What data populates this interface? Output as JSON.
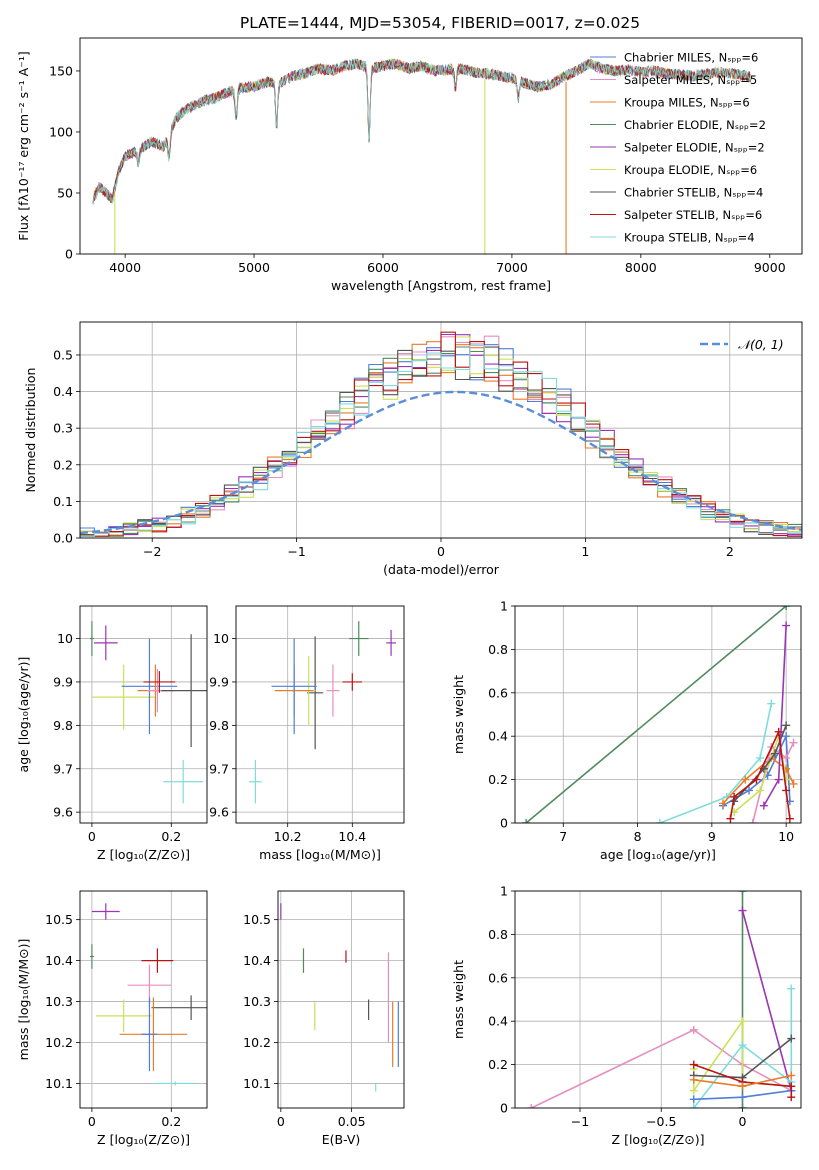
{
  "figure_title": "PLATE=1444, MJD=53054, FIBERID=0017, z=0.025",
  "colors": {
    "Chabrier MILES": "#4f7fd6",
    "Salpeter MILES": "#e58fbf",
    "Kroupa MILES": "#e87c2a",
    "Chabrier ELODIE": "#4f8a5f",
    "Salpeter ELODIE": "#9b35b5",
    "Kroupa ELODIE": "#cce05a",
    "Chabrier STELIB": "#555555",
    "Salpeter STELIB": "#b81414",
    "Kroupa STELIB": "#80dcdc"
  },
  "chart_data": [
    {
      "id": "spectrum",
      "type": "line",
      "xlabel": "wavelength [Angstrom, rest frame]",
      "ylabel": "Flux [fλ10⁻¹⁷ erg cm⁻² s⁻¹ A⁻¹]",
      "xlim": [
        3650,
        9250
      ],
      "ylim": [
        0,
        177
      ],
      "xticks": [
        4000,
        5000,
        6000,
        7000,
        8000,
        9000
      ],
      "yticks": [
        0,
        50,
        100,
        150
      ],
      "grid": false,
      "legend_position": "right",
      "legend": [
        "Chabrier MILES, Nₛₚₚ=6",
        "Salpeter MILES, Nₛₚₚ=5",
        "Kroupa MILES, Nₛₚₚ=6",
        "Chabrier ELODIE, Nₛₚₚ=2",
        "Salpeter ELODIE, Nₛₚₚ=2",
        "Kroupa ELODIE, Nₛₚₚ=6",
        "Chabrier STELIB, Nₛₚₚ=4",
        "Salpeter STELIB, Nₛₚₚ=6",
        "Kroupa STELIB, Nₛₚₚ=4"
      ],
      "continuum": [
        [
          3750,
          45
        ],
        [
          3800,
          55
        ],
        [
          3850,
          50
        ],
        [
          3900,
          45
        ],
        [
          3950,
          68
        ],
        [
          4000,
          80
        ],
        [
          4100,
          85
        ],
        [
          4200,
          92
        ],
        [
          4300,
          88
        ],
        [
          4400,
          112
        ],
        [
          4500,
          120
        ],
        [
          4600,
          125
        ],
        [
          4700,
          128
        ],
        [
          4800,
          133
        ],
        [
          4900,
          136
        ],
        [
          5000,
          137
        ],
        [
          5100,
          141
        ],
        [
          5200,
          140
        ],
        [
          5300,
          146
        ],
        [
          5400,
          148
        ],
        [
          5500,
          152
        ],
        [
          5600,
          150
        ],
        [
          5700,
          154
        ],
        [
          5800,
          156
        ],
        [
          5900,
          152
        ],
        [
          6000,
          154
        ],
        [
          6100,
          156
        ],
        [
          6200,
          152
        ],
        [
          6300,
          154
        ],
        [
          6400,
          150
        ],
        [
          6500,
          151
        ],
        [
          6600,
          152
        ],
        [
          6700,
          149
        ],
        [
          6800,
          148
        ],
        [
          6900,
          146
        ],
        [
          7000,
          144
        ],
        [
          7100,
          140
        ],
        [
          7200,
          137
        ],
        [
          7300,
          139
        ],
        [
          7400,
          145
        ],
        [
          7500,
          150
        ],
        [
          7600,
          156
        ],
        [
          7700,
          152
        ],
        [
          7800,
          150
        ],
        [
          7900,
          151
        ],
        [
          8000,
          149
        ],
        [
          8100,
          150
        ],
        [
          8200,
          148
        ],
        [
          8300,
          147
        ],
        [
          8400,
          146
        ],
        [
          8500,
          147
        ],
        [
          8600,
          149
        ],
        [
          8700,
          148
        ],
        [
          8800,
          146
        ],
        [
          8850,
          145
        ]
      ],
      "absorption_dips": [
        [
          3934,
          60
        ],
        [
          4102,
          75
        ],
        [
          4340,
          80
        ],
        [
          4861,
          112
        ],
        [
          5175,
          105
        ],
        [
          5892,
          95
        ],
        [
          6563,
          135
        ],
        [
          7050,
          128
        ]
      ],
      "drop_lines": [
        [
          3920,
          0
        ],
        [
          6790,
          0
        ],
        [
          7420,
          0
        ]
      ]
    },
    {
      "id": "residuals",
      "type": "bar",
      "xlabel": "(data-model)/error",
      "ylabel": "Normed distribution",
      "xlim": [
        -2.5,
        2.5
      ],
      "ylim": [
        0,
        0.59
      ],
      "xticks": [
        -2,
        -1,
        0,
        1,
        2
      ],
      "yticks": [
        0.0,
        0.1,
        0.2,
        0.3,
        0.4,
        0.5
      ],
      "grid": true,
      "legend_position": "top-right",
      "legend": [
        "𝒩(0, 1)"
      ],
      "bin_width": 0.1,
      "normal": {
        "mean": 0.1,
        "sigma": 1.0
      }
    },
    {
      "id": "age-vs-z",
      "type": "scatter",
      "xlabel": "Z [log₁₀(Z/Z⊙)]",
      "ylabel": "age  [log₁₀(age/yr)]",
      "xlim": [
        -0.03,
        0.29
      ],
      "ylim": [
        9.575,
        10.075
      ],
      "xticks": [
        0.0,
        0.2
      ],
      "yticks": [
        9.6,
        9.7,
        9.8,
        9.9,
        10.0
      ],
      "grid": true,
      "points": [
        {
          "model": "Chabrier ELODIE",
          "x": 0.0,
          "y": 10.0,
          "xerr": 0.005,
          "yerr": 0.04
        },
        {
          "model": "Salpeter ELODIE",
          "x": 0.035,
          "y": 9.99,
          "xerr": 0.03,
          "yerr": 0.04
        },
        {
          "model": "Kroupa ELODIE",
          "x": 0.08,
          "y": 9.865,
          "xerr": 0.08,
          "yerr": 0.075
        },
        {
          "model": "Chabrier MILES",
          "x": 0.145,
          "y": 9.89,
          "xerr": 0.07,
          "yerr": 0.11
        },
        {
          "model": "Kroupa MILES",
          "x": 0.16,
          "y": 9.88,
          "xerr": 0.045,
          "yerr": 0.06
        },
        {
          "model": "Salpeter MILES",
          "x": 0.165,
          "y": 9.88,
          "xerr": 0.025,
          "yerr": 0.05
        },
        {
          "model": "Salpeter STELIB",
          "x": 0.17,
          "y": 9.9,
          "xerr": 0.04,
          "yerr": 0.025
        },
        {
          "model": "Chabrier STELIB",
          "x": 0.25,
          "y": 9.88,
          "xerr": 0.075,
          "yerr": 0.13
        },
        {
          "model": "Kroupa STELIB",
          "x": 0.23,
          "y": 9.67,
          "xerr": 0.05,
          "yerr": 0.05
        }
      ]
    },
    {
      "id": "age-vs-mass",
      "type": "scatter",
      "xlabel": "mass [log₁₀(M/M⊙)]",
      "ylabel": "",
      "xlim": [
        10.04,
        10.56
      ],
      "ylim": [
        9.575,
        10.075
      ],
      "xticks": [
        10.2,
        10.4
      ],
      "yticks": [
        9.6,
        9.7,
        9.8,
        9.9,
        10.0
      ],
      "grid": true,
      "points": [
        {
          "model": "Salpeter ELODIE",
          "x": 10.52,
          "y": 9.99,
          "xerr": 0.015,
          "yerr": 0.03
        },
        {
          "model": "Chabrier ELODIE",
          "x": 10.42,
          "y": 10.0,
          "xerr": 0.03,
          "yerr": 0.04
        },
        {
          "model": "Salpeter STELIB",
          "x": 10.4,
          "y": 9.9,
          "xerr": 0.03,
          "yerr": 0.02
        },
        {
          "model": "Salpeter MILES",
          "x": 10.34,
          "y": 9.88,
          "xerr": 0.02,
          "yerr": 0.06
        },
        {
          "model": "Chabrier STELIB",
          "x": 10.285,
          "y": 9.875,
          "xerr": 0.025,
          "yerr": 0.13
        },
        {
          "model": "Kroupa ELODIE",
          "x": 10.265,
          "y": 9.88,
          "xerr": 0.02,
          "yerr": 0.08
        },
        {
          "model": "Kroupa MILES",
          "x": 10.22,
          "y": 9.88,
          "xerr": 0.06,
          "yerr": 0.06
        },
        {
          "model": "Chabrier MILES",
          "x": 10.22,
          "y": 9.89,
          "xerr": 0.07,
          "yerr": 0.11
        },
        {
          "model": "Kroupa STELIB",
          "x": 10.1,
          "y": 9.67,
          "xerr": 0.02,
          "yerr": 0.05
        }
      ]
    },
    {
      "id": "weight-vs-age",
      "type": "line",
      "xlabel": "age  [log₁₀(age/yr)]",
      "ylabel": "mass weight",
      "xlim": [
        6.35,
        10.2
      ],
      "ylim": [
        0,
        1
      ],
      "xticks": [
        7,
        8,
        9,
        10
      ],
      "yticks": [
        0.0,
        0.2,
        0.4,
        0.6,
        0.8,
        1.0
      ],
      "grid": true,
      "series": [
        {
          "model": "Chabrier ELODIE",
          "points": [
            [
              6.5,
              0.0
            ],
            [
              10.0,
              1.0
            ]
          ]
        },
        {
          "model": "Kroupa STELIB",
          "points": [
            [
              8.3,
              0.0
            ],
            [
              9.2,
              0.12
            ],
            [
              9.65,
              0.3
            ],
            [
              9.8,
              0.55
            ]
          ]
        },
        {
          "model": "Chabrier MILES",
          "points": [
            [
              9.15,
              0.08
            ],
            [
              9.5,
              0.15
            ],
            [
              9.75,
              0.22
            ],
            [
              10.0,
              0.4
            ],
            [
              10.05,
              0.1
            ]
          ]
        },
        {
          "model": "Kroupa MILES",
          "points": [
            [
              9.15,
              0.09
            ],
            [
              9.45,
              0.2
            ],
            [
              9.8,
              0.3
            ],
            [
              10.0,
              0.25
            ],
            [
              10.1,
              0.18
            ]
          ]
        },
        {
          "model": "Salpeter MILES",
          "points": [
            [
              9.55,
              0.0
            ],
            [
              9.8,
              0.35
            ],
            [
              10.0,
              0.3
            ],
            [
              10.1,
              0.37
            ]
          ]
        },
        {
          "model": "Kroupa ELODIE",
          "points": [
            [
              9.3,
              0.05
            ],
            [
              9.65,
              0.15
            ],
            [
              9.9,
              0.4
            ],
            [
              10.0,
              0.2
            ]
          ]
        },
        {
          "model": "Chabrier STELIB",
          "points": [
            [
              9.3,
              0.1
            ],
            [
              9.7,
              0.25
            ],
            [
              9.85,
              0.32
            ],
            [
              10.0,
              0.45
            ]
          ]
        },
        {
          "model": "Salpeter ELODIE",
          "points": [
            [
              9.7,
              0.08
            ],
            [
              9.9,
              0.2
            ],
            [
              10.0,
              0.91
            ]
          ]
        },
        {
          "model": "Salpeter STELIB",
          "points": [
            [
              9.25,
              0.02
            ],
            [
              9.3,
              0.12
            ],
            [
              9.6,
              0.2
            ],
            [
              9.9,
              0.42
            ],
            [
              10.0,
              0.15
            ],
            [
              10.05,
              0.02
            ]
          ]
        }
      ]
    },
    {
      "id": "mass-vs-z",
      "type": "scatter",
      "xlabel": "Z [log₁₀(Z/Z⊙)]",
      "ylabel": "mass [log₁₀(M/M⊙)]",
      "xlim": [
        -0.03,
        0.29
      ],
      "ylim": [
        10.04,
        10.57
      ],
      "xticks": [
        0.0,
        0.2
      ],
      "yticks": [
        10.1,
        10.2,
        10.3,
        10.4,
        10.5
      ],
      "grid": true,
      "points": [
        {
          "model": "Salpeter ELODIE",
          "x": 0.035,
          "y": 10.52,
          "xerr": 0.035,
          "yerr": 0.02
        },
        {
          "model": "Chabrier ELODIE",
          "x": 0.0,
          "y": 10.41,
          "xerr": 0.005,
          "yerr": 0.03
        },
        {
          "model": "Salpeter STELIB",
          "x": 0.165,
          "y": 10.4,
          "xerr": 0.04,
          "yerr": 0.03
        },
        {
          "model": "Salpeter MILES",
          "x": 0.145,
          "y": 10.34,
          "xerr": 0.055,
          "yerr": 0.05
        },
        {
          "model": "Chabrier STELIB",
          "x": 0.25,
          "y": 10.285,
          "xerr": 0.1,
          "yerr": 0.03
        },
        {
          "model": "Kroupa ELODIE",
          "x": 0.08,
          "y": 10.265,
          "xerr": 0.07,
          "yerr": 0.04
        },
        {
          "model": "Kroupa MILES",
          "x": 0.155,
          "y": 10.22,
          "xerr": 0.085,
          "yerr": 0.09
        },
        {
          "model": "Chabrier MILES",
          "x": 0.145,
          "y": 10.22,
          "xerr": 0.02,
          "yerr": 0.09
        },
        {
          "model": "Kroupa STELIB",
          "x": 0.21,
          "y": 10.1,
          "xerr": 0.05,
          "yerr": 0.005
        }
      ]
    },
    {
      "id": "mass-vs-ebv",
      "type": "scatter",
      "xlabel": "E(B-V)",
      "ylabel": "",
      "xlim": [
        -0.002,
        0.087
      ],
      "ylim": [
        10.04,
        10.57
      ],
      "xticks": [
        0.0,
        0.05
      ],
      "yticks": [
        10.1,
        10.2,
        10.3,
        10.4,
        10.5
      ],
      "grid": true,
      "points": [
        {
          "model": "Salpeter ELODIE",
          "x": 0.0,
          "y": 10.52,
          "xerr": 0,
          "yerr": 0.02
        },
        {
          "model": "Chabrier ELODIE",
          "x": 0.016,
          "y": 10.4,
          "xerr": 0,
          "yerr": 0.03
        },
        {
          "model": "Kroupa ELODIE",
          "x": 0.024,
          "y": 10.265,
          "xerr": 0,
          "yerr": 0.035
        },
        {
          "model": "Salpeter STELIB",
          "x": 0.046,
          "y": 10.41,
          "xerr": 0,
          "yerr": 0.015
        },
        {
          "model": "Chabrier STELIB",
          "x": 0.062,
          "y": 10.28,
          "xerr": 0,
          "yerr": 0.025
        },
        {
          "model": "Kroupa STELIB",
          "x": 0.067,
          "y": 10.09,
          "xerr": 0,
          "yerr": 0.01
        },
        {
          "model": "Salpeter MILES",
          "x": 0.076,
          "y": 10.31,
          "xerr": 0,
          "yerr": 0.11
        },
        {
          "model": "Kroupa MILES",
          "x": 0.079,
          "y": 10.22,
          "xerr": 0,
          "yerr": 0.08
        },
        {
          "model": "Chabrier MILES",
          "x": 0.083,
          "y": 10.22,
          "xerr": 0,
          "yerr": 0.08
        }
      ]
    },
    {
      "id": "weight-vs-z",
      "type": "line",
      "xlabel": "Z [log₁₀(Z/Z⊙)]",
      "ylabel": "mass weight",
      "xlim": [
        -1.4,
        0.36
      ],
      "ylim": [
        0,
        1
      ],
      "xticks": [
        -1.0,
        -0.5,
        0.0
      ],
      "yticks": [
        0.0,
        0.2,
        0.4,
        0.6,
        0.8,
        1.0
      ],
      "grid": true,
      "series": [
        {
          "model": "Salpeter MILES",
          "points": [
            [
              -1.3,
              0.0
            ],
            [
              -0.3,
              0.36
            ],
            [
              0.0,
              0.2
            ],
            [
              0.3,
              0.08
            ]
          ]
        },
        {
          "model": "Chabrier ELODIE",
          "points": [
            [
              0.0,
              1.0
            ],
            [
              0.0,
              0.0
            ]
          ]
        },
        {
          "model": "Salpeter ELODIE",
          "points": [
            [
              0.0,
              0.91
            ],
            [
              0.3,
              0.08
            ]
          ]
        },
        {
          "model": "Kroupa ELODIE",
          "points": [
            [
              -0.3,
              0.18
            ],
            [
              -0.3,
              0.08
            ],
            [
              0.0,
              0.4
            ],
            [
              0.0,
              0.12
            ],
            [
              0.3,
              0.1
            ]
          ]
        },
        {
          "model": "Kroupa STELIB",
          "points": [
            [
              -0.3,
              0.0
            ],
            [
              0.0,
              0.29
            ],
            [
              0.3,
              0.12
            ],
            [
              0.3,
              0.55
            ]
          ]
        },
        {
          "model": "Chabrier MILES",
          "points": [
            [
              -0.3,
              0.04
            ],
            [
              0.0,
              0.05
            ],
            [
              0.3,
              0.08
            ]
          ]
        },
        {
          "model": "Chabrier STELIB",
          "points": [
            [
              -0.3,
              0.15
            ],
            [
              0.0,
              0.14
            ],
            [
              0.3,
              0.32
            ]
          ]
        },
        {
          "model": "Salpeter STELIB",
          "points": [
            [
              -0.3,
              0.2
            ],
            [
              0.0,
              0.12
            ],
            [
              0.3,
              0.1
            ],
            [
              0.3,
              0.05
            ]
          ]
        },
        {
          "model": "Kroupa MILES",
          "points": [
            [
              -0.3,
              0.13
            ],
            [
              0.0,
              0.1
            ],
            [
              0.3,
              0.15
            ]
          ]
        }
      ]
    }
  ]
}
